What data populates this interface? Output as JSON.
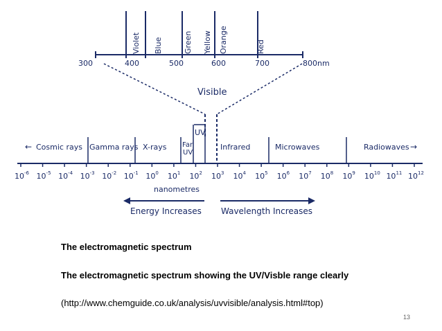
{
  "visible_band": {
    "title": "Visible",
    "colors": [
      "Violet",
      "Blue",
      "Green",
      "Yellow",
      "Orange",
      "Red"
    ],
    "wavelength_ticks": [
      "300",
      "400",
      "500",
      "600",
      "700",
      "800nm"
    ],
    "line_color": "#1a2a66"
  },
  "regions": {
    "cosmic_rays": "Cosmic rays",
    "gamma_rays": "Gamma rays",
    "x_rays": "X-rays",
    "far_uv": [
      "Far",
      "UV"
    ],
    "uv": "UV",
    "infrared": "Infrared",
    "microwaves": "Microwaves",
    "radiowaves": "Radiowaves"
  },
  "scale": {
    "base": "10",
    "exponents": [
      "-6",
      "-5",
      "-4",
      "-3",
      "-2",
      "-1",
      "0",
      "1",
      "2",
      "3",
      "4",
      "5",
      "6",
      "7",
      "8",
      "9",
      "10",
      "11",
      "12"
    ],
    "unit": "nanometres"
  },
  "arrows": {
    "energy": "Energy Increases",
    "wavelength": "Wavelength Increases"
  },
  "caption": {
    "title": "The electromagnetic spectrum",
    "description": "The electromagnetic spectrum showing the UV/Visble range clearly",
    "source": "(http://www.chemguide.co.uk/analysis/uvvisible/analysis.html#top)"
  },
  "page_number": "13"
}
